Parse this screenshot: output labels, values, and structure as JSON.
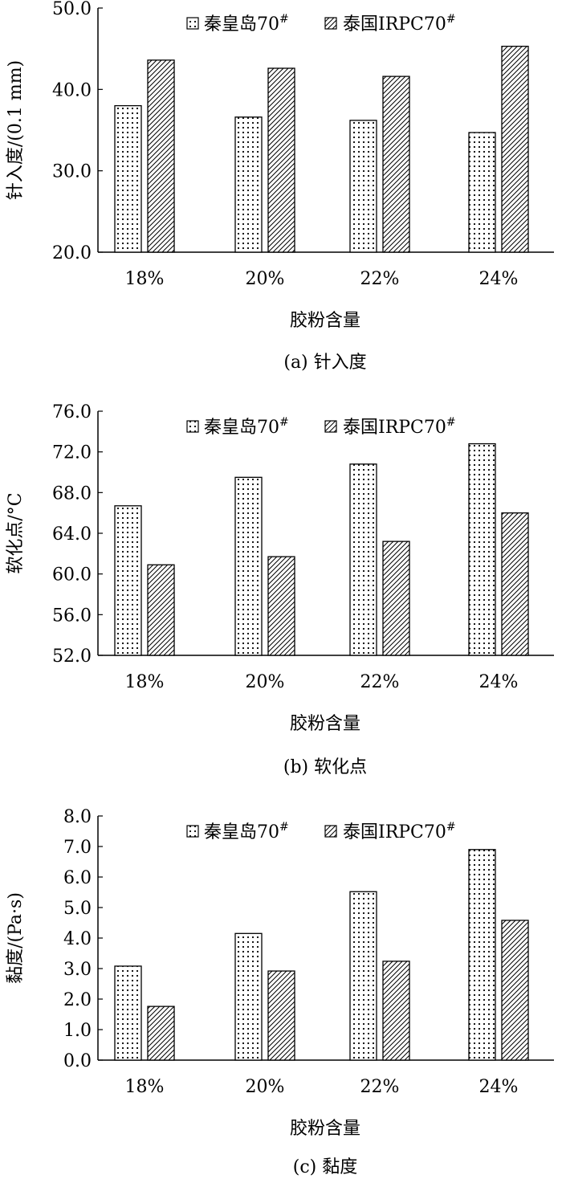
{
  "chart_data": [
    {
      "type": "bar",
      "caption": "(a) 针入度",
      "xlabel": "胶粉含量",
      "ylabel": "针入度/(0.1 mm)",
      "categories": [
        "18%",
        "20%",
        "22%",
        "24%"
      ],
      "ylim": [
        20.0,
        50.0
      ],
      "yticks": [
        "20.0",
        "30.0",
        "40.0",
        "50.0"
      ],
      "grid": false,
      "legend_position": "top-right",
      "series": [
        {
          "name": "秦皇岛70",
          "name_sup": "#",
          "pattern": "dots",
          "values": [
            38.0,
            36.6,
            36.2,
            34.7
          ]
        },
        {
          "name": "泰国IRPC70",
          "name_sup": "#",
          "pattern": "hatch",
          "values": [
            43.6,
            42.6,
            41.6,
            45.3
          ]
        }
      ]
    },
    {
      "type": "bar",
      "caption": "(b) 软化点",
      "xlabel": "胶粉含量",
      "ylabel": "软化点/°C",
      "categories": [
        "18%",
        "20%",
        "22%",
        "24%"
      ],
      "ylim": [
        52.0,
        76.0
      ],
      "yticks": [
        "52.0",
        "56.0",
        "60.0",
        "64.0",
        "68.0",
        "72.0",
        "76.0"
      ],
      "grid": false,
      "legend_position": "top-right",
      "series": [
        {
          "name": "秦皇岛70",
          "name_sup": "#",
          "pattern": "dots",
          "values": [
            66.7,
            69.5,
            70.8,
            72.8
          ]
        },
        {
          "name": "泰国IRPC70",
          "name_sup": "#",
          "pattern": "hatch",
          "values": [
            60.9,
            61.7,
            63.2,
            66.0
          ]
        }
      ]
    },
    {
      "type": "bar",
      "caption": "(c) 黏度",
      "xlabel": "胶粉含量",
      "ylabel": "黏度/(Pa·s)",
      "categories": [
        "18%",
        "20%",
        "22%",
        "24%"
      ],
      "ylim": [
        0.0,
        8.0
      ],
      "yticks": [
        "0.0",
        "1.0",
        "2.0",
        "3.0",
        "4.0",
        "5.0",
        "6.0",
        "7.0",
        "8.0"
      ],
      "grid": false,
      "legend_position": "top-right",
      "series": [
        {
          "name": "秦皇岛70",
          "name_sup": "#",
          "pattern": "dots",
          "values": [
            3.08,
            4.15,
            5.52,
            6.9
          ]
        },
        {
          "name": "泰国IRPC70",
          "name_sup": "#",
          "pattern": "hatch",
          "values": [
            1.76,
            2.92,
            3.24,
            4.58
          ]
        }
      ]
    }
  ]
}
